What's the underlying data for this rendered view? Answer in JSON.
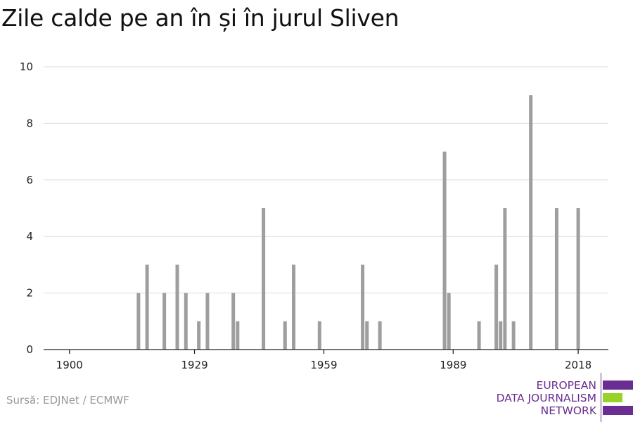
{
  "title": "Zile calde pe an în și în jurul Sliven",
  "source": "Sursă: EDJNet / ECMWF",
  "logo": {
    "lines": [
      "EUROPEAN",
      "DATA JOURNALISM",
      "NETWORK"
    ],
    "colors": {
      "purple": "#6a2d91",
      "green": "#9bd22a"
    }
  },
  "chart_data": {
    "type": "bar",
    "bar_color": "#9e9e9e",
    "grid": true,
    "xlim": [
      1894,
      2025
    ],
    "ylim": [
      0,
      10
    ],
    "x_ticks": [
      1900,
      1929,
      1959,
      1989,
      2018
    ],
    "y_ticks": [
      0,
      2,
      4,
      6,
      8,
      10
    ],
    "points": [
      {
        "x": 1916,
        "y": 2
      },
      {
        "x": 1918,
        "y": 3
      },
      {
        "x": 1922,
        "y": 2
      },
      {
        "x": 1925,
        "y": 3
      },
      {
        "x": 1927,
        "y": 2
      },
      {
        "x": 1930,
        "y": 1
      },
      {
        "x": 1932,
        "y": 2
      },
      {
        "x": 1938,
        "y": 2
      },
      {
        "x": 1939,
        "y": 1
      },
      {
        "x": 1945,
        "y": 5
      },
      {
        "x": 1950,
        "y": 1
      },
      {
        "x": 1952,
        "y": 3
      },
      {
        "x": 1958,
        "y": 1
      },
      {
        "x": 1968,
        "y": 3
      },
      {
        "x": 1969,
        "y": 1
      },
      {
        "x": 1972,
        "y": 1
      },
      {
        "x": 1987,
        "y": 7
      },
      {
        "x": 1988,
        "y": 2
      },
      {
        "x": 1995,
        "y": 1
      },
      {
        "x": 1999,
        "y": 3
      },
      {
        "x": 2000,
        "y": 1
      },
      {
        "x": 2001,
        "y": 5
      },
      {
        "x": 2003,
        "y": 1
      },
      {
        "x": 2007,
        "y": 9
      },
      {
        "x": 2013,
        "y": 5
      },
      {
        "x": 2018,
        "y": 5
      }
    ]
  }
}
